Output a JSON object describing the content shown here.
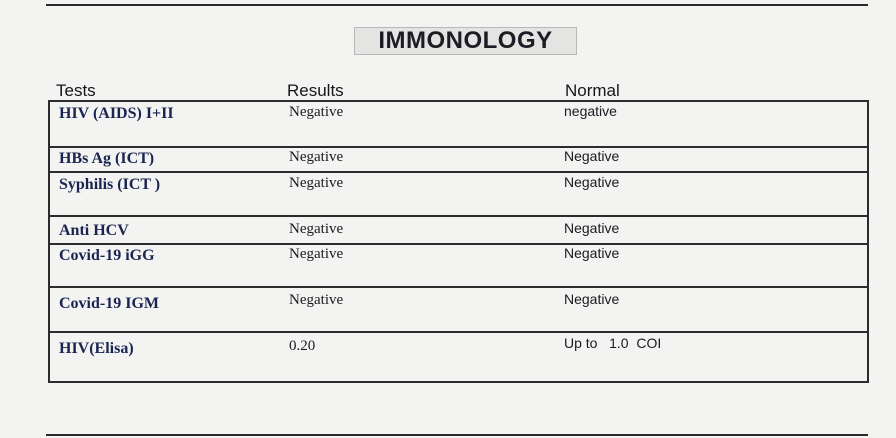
{
  "report": {
    "section_title": "IMMONOLOGY",
    "headers": {
      "tests": "Tests",
      "results": "Results",
      "normal": "Normal"
    },
    "rows": [
      {
        "test": "HIV (AIDS) I+II",
        "result": "Negative",
        "normal": "negative"
      },
      {
        "test": "HBs Ag (ICT)",
        "result": "Negative",
        "normal": "Negative"
      },
      {
        "test": "Syphilis (ICT )",
        "result": "Negative",
        "normal": "Negative"
      },
      {
        "test": "Anti HCV",
        "result": "Negative",
        "normal": "Negative"
      },
      {
        "test": "Covid-19 iGG",
        "result": "Negative",
        "normal": "Negative"
      },
      {
        "test": "Covid-19 IGM",
        "result": "Negative",
        "normal": "Negative"
      },
      {
        "test": "HIV(Elisa)",
        "result": "0.20",
        "normal": "Up to   1.0  COI"
      }
    ]
  }
}
